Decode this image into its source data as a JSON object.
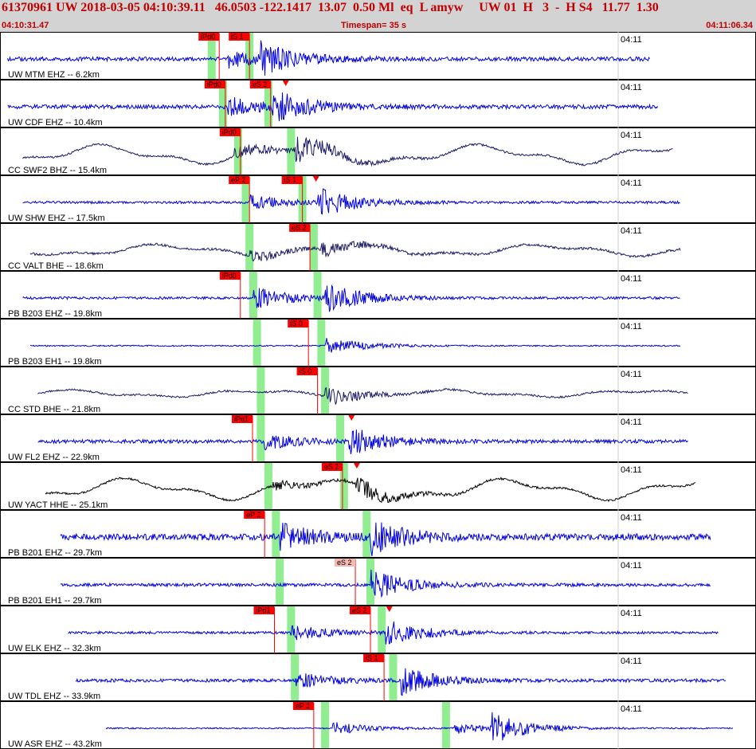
{
  "header": {
    "title_line": "61370961 UW 2018-03-05 04:10:39.11   46.0503 -122.1417  13.07  0.50 Ml  eq  L amyw     UW 01  H   3  -  H S4   11.77  1.30",
    "start_time": "04:10:31.47",
    "timespan": "Timespan=  35 s",
    "end_time": "04:11:06.34"
  },
  "time_tick_label": "04:11",
  "colors": {
    "header_bg": "#d3d3d3",
    "header_text": "#c00000",
    "trace_blue": "#0000e0",
    "trace_dark": "#1a1a66",
    "trace_black": "#000000",
    "pick_red": "#ff0000",
    "pick_pale": "#f4b8b0",
    "window_green": "#90ee90",
    "grid": "#cccccc"
  },
  "channels": [
    {
      "label": "UW MTM EHZ -- 6.2km",
      "style": "blue",
      "seed": 1,
      "start": 0.01,
      "end": 0.86,
      "noise": 2.5,
      "wave": 0,
      "ev": [
        [
          0.3,
          11
        ],
        [
          0.345,
          18
        ]
      ],
      "greens": [
        0.28,
        0.33
      ],
      "picks": [
        {
          "t": "iPd0",
          "x": 0.29,
          "fill": "red"
        },
        {
          "t": "iS 1",
          "x": 0.33,
          "fill": "red"
        }
      ],
      "tri": []
    },
    {
      "label": "UW CDF EHZ -- 10.4km",
      "style": "blue",
      "seed": 2,
      "start": 0.01,
      "end": 0.87,
      "noise": 2.5,
      "wave": 0,
      "ev": [
        [
          0.3,
          12
        ],
        [
          0.36,
          20
        ]
      ],
      "greens": [
        0.295,
        0.355
      ],
      "picks": [
        {
          "t": "iPd0",
          "x": 0.298,
          "fill": "red"
        },
        {
          "t": "eS 2",
          "x": 0.358,
          "fill": "red"
        }
      ],
      "tri": [
        0.378
      ]
    },
    {
      "label": "CC SWF2 BHZ -- 15.4km",
      "style": "dark",
      "seed": 3,
      "start": 0.03,
      "end": 0.89,
      "noise": 1.2,
      "wave": 13,
      "ev": [
        [
          0.31,
          10
        ],
        [
          0.39,
          16
        ]
      ],
      "greens": [
        0.315,
        0.385
      ],
      "picks": [
        {
          "t": "iPd0",
          "x": 0.318,
          "fill": "red"
        }
      ],
      "tri": []
    },
    {
      "label": "UW SHW EHZ -- 17.5km",
      "style": "blue",
      "seed": 4,
      "start": 0.03,
      "end": 0.9,
      "noise": 1.5,
      "wave": 0,
      "ev": [
        [
          0.33,
          9
        ],
        [
          0.42,
          19
        ]
      ],
      "greens": [
        0.325,
        0.4
      ],
      "picks": [
        {
          "t": "eP 2",
          "x": 0.33,
          "fill": "red"
        },
        {
          "t": "iS 1",
          "x": 0.4,
          "fill": "red"
        }
      ],
      "tri": [
        0.418
      ]
    },
    {
      "label": "CC VALT BHE -- 18.6km",
      "style": "dark",
      "seed": 5,
      "start": 0.04,
      "end": 0.9,
      "noise": 1.5,
      "wave": 8,
      "ev": [
        [
          0.33,
          6
        ],
        [
          0.425,
          10
        ]
      ],
      "greens": [
        0.33,
        0.415
      ],
      "picks": [
        {
          "t": "eS 2",
          "x": 0.41,
          "fill": "red"
        }
      ],
      "tri": []
    },
    {
      "label": "PB B203 EHZ -- 19.8km",
      "style": "blue",
      "seed": 6,
      "start": 0.03,
      "end": 0.9,
      "noise": 1.5,
      "wave": 0,
      "ev": [
        [
          0.335,
          14
        ],
        [
          0.43,
          18
        ]
      ],
      "greens": [
        0.335,
        0.42
      ],
      "picks": [
        {
          "t": "iPd0",
          "x": 0.318,
          "fill": "red"
        }
      ],
      "tri": []
    },
    {
      "label": "PB B203 EH1 -- 19.8km",
      "style": "blue",
      "seed": 7,
      "start": 0.04,
      "end": 0.9,
      "noise": 0.8,
      "wave": 0,
      "ev": [
        [
          0.43,
          12
        ]
      ],
      "greens": [
        0.34,
        0.425
      ],
      "picks": [
        {
          "t": "iS 0",
          "x": 0.408,
          "fill": "red"
        }
      ],
      "tri": []
    },
    {
      "label": "CC STD BHE -- 21.8km",
      "style": "dark",
      "seed": 8,
      "start": 0.05,
      "end": 0.91,
      "noise": 1.2,
      "wave": 5,
      "ev": [
        [
          0.43,
          11
        ]
      ],
      "greens": [
        0.345,
        0.43
      ],
      "picks": [
        {
          "t": "iS 0",
          "x": 0.42,
          "fill": "red"
        }
      ],
      "tri": []
    },
    {
      "label": "UW FL2 EHZ -- 22.9km",
      "style": "blue",
      "seed": 9,
      "start": 0.05,
      "end": 0.91,
      "noise": 2.2,
      "wave": 0,
      "ev": [
        [
          0.35,
          9
        ],
        [
          0.46,
          18
        ]
      ],
      "greens": [
        0.345,
        0.45
      ],
      "picks": [
        {
          "t": "iPd1",
          "x": 0.334,
          "fill": "red"
        }
      ],
      "tri": [
        0.465
      ]
    },
    {
      "label": "UW YACT HHE -- 25.1km",
      "style": "black",
      "seed": 10,
      "start": 0.06,
      "end": 0.92,
      "noise": 1.3,
      "wave": 14,
      "ev": [
        [
          0.36,
          6
        ],
        [
          0.47,
          14
        ]
      ],
      "greens": [
        0.355,
        0.455
      ],
      "picks": [
        {
          "t": "eS 2",
          "x": 0.453,
          "fill": "red"
        }
      ],
      "tri": [
        0.472
      ]
    },
    {
      "label": "PB B201 EHZ -- 29.7km",
      "style": "blue",
      "seed": 11,
      "start": 0.08,
      "end": 0.94,
      "noise": 4.0,
      "wave": 0,
      "ev": [
        [
          0.37,
          16
        ],
        [
          0.49,
          20
        ]
      ],
      "greens": [
        0.365,
        0.485
      ],
      "picks": [
        {
          "t": "eP 2",
          "x": 0.35,
          "fill": "red"
        }
      ],
      "tri": []
    },
    {
      "label": "PB B201 EH1 -- 29.7km",
      "style": "blue",
      "seed": 12,
      "start": 0.08,
      "end": 0.94,
      "noise": 2.0,
      "wave": 0,
      "ev": [
        [
          0.49,
          19
        ]
      ],
      "greens": [
        0.37,
        0.49
      ],
      "picks": [
        {
          "t": "eS 2",
          "x": 0.47,
          "fill": "pale"
        }
      ],
      "tri": []
    },
    {
      "label": "UW ELK EHZ -- 32.3km",
      "style": "blue",
      "seed": 13,
      "start": 0.09,
      "end": 0.95,
      "noise": 1.5,
      "wave": 0,
      "ev": [
        [
          0.385,
          10
        ],
        [
          0.51,
          17
        ]
      ],
      "greens": [
        0.385,
        0.505
      ],
      "picks": [
        {
          "t": "iPd1",
          "x": 0.363,
          "fill": "red"
        },
        {
          "t": "eS 2",
          "x": 0.49,
          "fill": "red"
        }
      ],
      "tri": [
        0.515
      ]
    },
    {
      "label": "UW TDL EHZ -- 33.9km",
      "style": "blue",
      "seed": 14,
      "start": 0.1,
      "end": 0.96,
      "noise": 2.0,
      "wave": 0,
      "ev": [
        [
          0.39,
          10
        ],
        [
          0.53,
          17
        ]
      ],
      "greens": [
        0.39,
        0.52
      ],
      "picks": [
        {
          "t": "iS 1",
          "x": 0.508,
          "fill": "red"
        }
      ],
      "tri": []
    },
    {
      "label": "UW ASR EHZ -- 43.2km",
      "style": "blue",
      "seed": 15,
      "start": 0.14,
      "end": 0.97,
      "noise": 0.8,
      "wave": 0,
      "ev": [
        [
          0.44,
          8
        ],
        [
          0.6,
          7
        ],
        [
          0.65,
          18
        ]
      ],
      "greens": [
        0.43,
        0.59
      ],
      "picks": [
        {
          "t": "eP 2",
          "x": 0.415,
          "fill": "red"
        }
      ],
      "tri": []
    }
  ]
}
